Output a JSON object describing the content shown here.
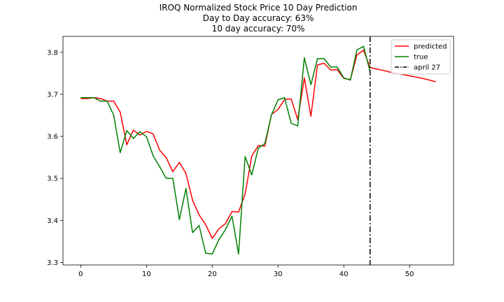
{
  "chart_data": {
    "type": "line",
    "title_lines": [
      "IROQ Normalized Stock Price 10 Day Prediction",
      "Day to Day accuracy: 63%",
      "10 day accuracy: 70%"
    ],
    "xlabel": "",
    "ylabel": "",
    "xlim": [
      -2.7,
      56.7
    ],
    "ylim": [
      3.294,
      3.838
    ],
    "xticks": [
      0,
      10,
      20,
      30,
      40,
      50
    ],
    "yticks": [
      3.3,
      3.4,
      3.5,
      3.6,
      3.7,
      3.8
    ],
    "grid": false,
    "legend_location": "upper right",
    "series": [
      {
        "name": "predicted",
        "color": "#ff0000",
        "x": [
          0,
          1,
          2,
          3,
          4,
          5,
          6,
          7,
          8,
          9,
          10,
          11,
          12,
          13,
          14,
          15,
          16,
          17,
          18,
          19,
          20,
          21,
          22,
          23,
          24,
          25,
          26,
          27,
          28,
          29,
          30,
          31,
          32,
          33,
          34,
          35,
          36,
          37,
          38,
          39,
          40,
          41,
          42,
          43,
          44,
          45,
          46,
          47,
          48,
          49,
          50,
          51,
          52,
          53,
          54
        ],
        "values": [
          3.69,
          3.69,
          3.692,
          3.69,
          3.684,
          3.684,
          3.658,
          3.58,
          3.615,
          3.603,
          3.612,
          3.606,
          3.567,
          3.549,
          3.516,
          3.538,
          3.512,
          3.448,
          3.413,
          3.39,
          3.357,
          3.38,
          3.392,
          3.421,
          3.42,
          3.463,
          3.553,
          3.578,
          3.577,
          3.652,
          3.664,
          3.688,
          3.689,
          3.64,
          3.739,
          3.648,
          3.77,
          3.774,
          3.758,
          3.759,
          3.738,
          3.735,
          3.794,
          3.805,
          3.764,
          3.76,
          3.757,
          3.753,
          3.75,
          3.747,
          3.744,
          3.741,
          3.738,
          3.734,
          3.73
        ]
      },
      {
        "name": "true",
        "color": "#008000",
        "x": [
          0,
          1,
          2,
          3,
          4,
          5,
          6,
          7,
          8,
          9,
          10,
          11,
          12,
          13,
          14,
          15,
          16,
          17,
          18,
          19,
          20,
          21,
          22,
          23,
          24,
          25,
          26,
          27,
          28,
          29,
          30,
          31,
          32,
          33,
          34,
          35,
          36,
          37,
          38,
          39,
          40,
          41,
          42,
          43,
          44
        ],
        "values": [
          3.692,
          3.692,
          3.692,
          3.684,
          3.684,
          3.651,
          3.561,
          3.614,
          3.595,
          3.611,
          3.599,
          3.554,
          3.528,
          3.5,
          3.5,
          3.402,
          3.476,
          3.371,
          3.388,
          3.322,
          3.32,
          3.354,
          3.378,
          3.41,
          3.32,
          3.552,
          3.508,
          3.572,
          3.583,
          3.651,
          3.687,
          3.692,
          3.631,
          3.625,
          3.787,
          3.723,
          3.785,
          3.785,
          3.765,
          3.765,
          3.739,
          3.734,
          3.806,
          3.814,
          3.755
        ]
      }
    ],
    "vline": {
      "x": 44,
      "label": "april 27",
      "style": "dash-dot",
      "color": "#000000"
    },
    "legend": [
      "predicted",
      "true",
      "april 27"
    ]
  }
}
